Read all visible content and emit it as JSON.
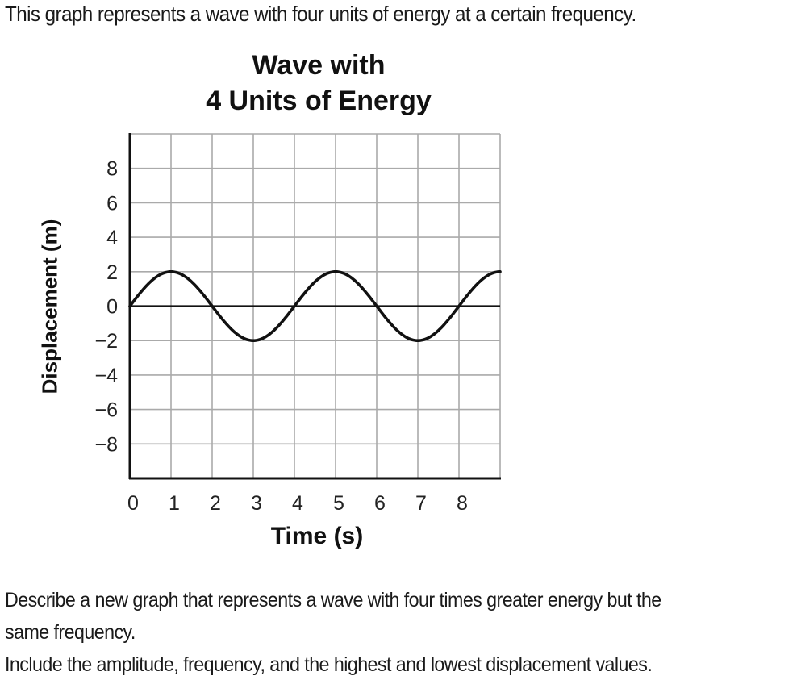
{
  "intro_text": "This graph represents a wave with four units of energy at a certain frequency.",
  "question": {
    "line1": "Describe a new graph that represents a wave with four times greater energy but the",
    "line2": "same frequency.",
    "line3": "Include the amplitude, frequency, and the highest and lowest displacement values."
  },
  "chart_data": {
    "type": "line",
    "title": "Wave with 4 Units of Energy",
    "title_lines": [
      "Wave with",
      "4 Units of Energy"
    ],
    "xlabel": "Time (s)",
    "ylabel": "Displacement (m)",
    "x_ticks": [
      "0",
      "1",
      "2",
      "3",
      "4",
      "5",
      "6",
      "7",
      "8"
    ],
    "y_ticks": [
      "8",
      "6",
      "4",
      "2",
      "0",
      "−2",
      "−4",
      "−6",
      "−8"
    ],
    "xlim": [
      0,
      9
    ],
    "ylim": [
      -10,
      10
    ],
    "grid": true,
    "legend": null,
    "series": [
      {
        "name": "wave",
        "function": "2*sin(pi*t/2)",
        "amplitude": 2,
        "period": 4,
        "x": [
          0,
          1,
          2,
          3,
          4,
          5,
          6,
          7,
          8,
          9
        ],
        "y": [
          0,
          2,
          0,
          -2,
          0,
          2,
          0,
          -2,
          0,
          2
        ]
      }
    ],
    "colors": {
      "curve": "#111111",
      "grid": "#aaaaaa",
      "axes": "#111111"
    }
  }
}
